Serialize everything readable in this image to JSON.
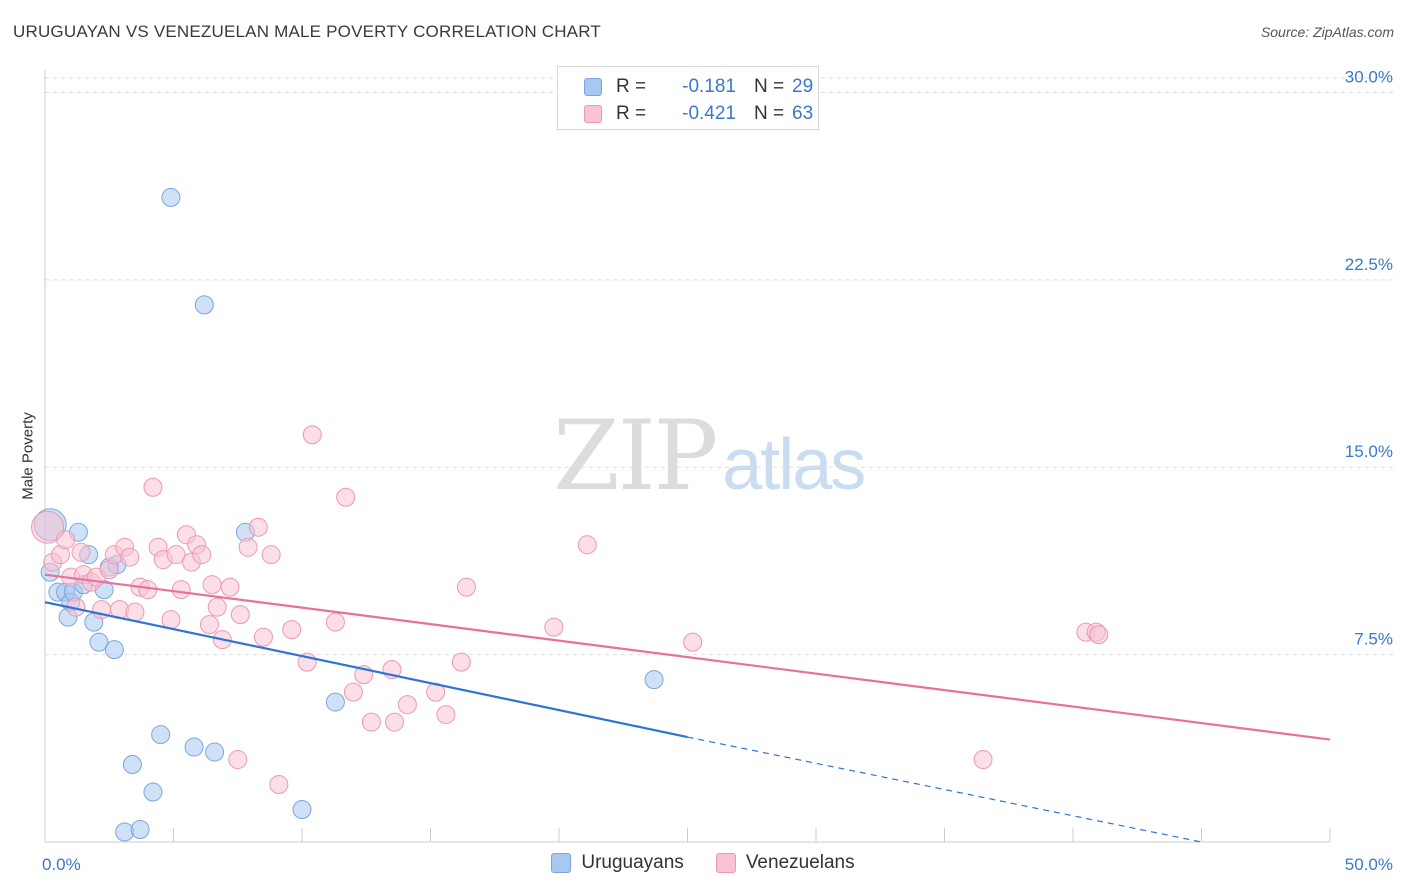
{
  "title": "URUGUAYAN VS VENEZUELAN MALE POVERTY CORRELATION CHART",
  "source": "Source: ZipAtlas.com",
  "watermark": {
    "zip": "ZIP",
    "atlas": "atlas"
  },
  "legend": {
    "rows": [
      {
        "r_label": "R =",
        "r_value": "-0.181",
        "n_label": "N =",
        "n_value": "29",
        "color": "#a8c8f0",
        "border": "#7aa6dd"
      },
      {
        "r_label": "R =",
        "r_value": "-0.421",
        "n_label": "N =",
        "n_value": "63",
        "color": "#f8c3d3",
        "border": "#ec98b3"
      }
    ]
  },
  "bottom_legend": [
    "Uruguayans",
    "Venezuelans"
  ],
  "chart_data": {
    "type": "scatter",
    "title": "URUGUAYAN VS VENEZUELAN MALE POVERTY CORRELATION CHART",
    "xlabel": "",
    "ylabel": "Male Poverty",
    "xlim": [
      0,
      50
    ],
    "ylim": [
      0,
      30.9
    ],
    "x_tick_labels": [
      "0.0%",
      "50.0%"
    ],
    "y_ticks": [
      7.5,
      15.0,
      22.5,
      30.0
    ],
    "y_tick_labels": [
      "7.5%",
      "15.0%",
      "22.5%",
      "30.0%"
    ],
    "grid": true,
    "legend_position": "top-center",
    "series": [
      {
        "name": "Uruguayans",
        "color": "#a8c8f0",
        "stroke": "#7aa6dd",
        "trend_color": "#2e74d6",
        "trend": {
          "x0": 0.0,
          "y0": 9.6,
          "x1": 25.0,
          "y1": 4.2,
          "dash_to_x": 45.0,
          "dash_to_y": 0.0
        },
        "points": [
          [
            0.2,
            12.7
          ],
          [
            0.2,
            10.8
          ],
          [
            0.5,
            10.0
          ],
          [
            0.8,
            10.0
          ],
          [
            0.9,
            9.0
          ],
          [
            1.0,
            9.6
          ],
          [
            1.1,
            10.0
          ],
          [
            1.3,
            12.4
          ],
          [
            1.5,
            10.3
          ],
          [
            1.7,
            11.5
          ],
          [
            1.9,
            8.8
          ],
          [
            2.1,
            8.0
          ],
          [
            2.3,
            10.1
          ],
          [
            2.5,
            11.0
          ],
          [
            2.7,
            7.7
          ],
          [
            2.8,
            11.1
          ],
          [
            3.1,
            0.4
          ],
          [
            3.4,
            3.1
          ],
          [
            3.7,
            0.5
          ],
          [
            4.2,
            2.0
          ],
          [
            4.5,
            4.3
          ],
          [
            4.9,
            25.8
          ],
          [
            5.8,
            3.8
          ],
          [
            6.2,
            21.5
          ],
          [
            6.6,
            3.6
          ],
          [
            7.8,
            12.4
          ],
          [
            10.0,
            1.3
          ],
          [
            11.3,
            5.6
          ],
          [
            23.7,
            6.5
          ]
        ]
      },
      {
        "name": "Venezuelans",
        "color": "#f8c3d3",
        "stroke": "#ec98b3",
        "trend_color": "#e8709a",
        "trend": {
          "x0": 0.0,
          "y0": 10.7,
          "x1": 50.0,
          "y1": 4.1
        },
        "points": [
          [
            0.1,
            12.6
          ],
          [
            0.3,
            11.2
          ],
          [
            0.6,
            11.5
          ],
          [
            0.8,
            12.1
          ],
          [
            1.0,
            10.6
          ],
          [
            1.2,
            9.4
          ],
          [
            1.4,
            11.6
          ],
          [
            1.5,
            10.7
          ],
          [
            1.8,
            10.4
          ],
          [
            2.0,
            10.6
          ],
          [
            2.2,
            9.3
          ],
          [
            2.5,
            10.9
          ],
          [
            2.7,
            11.5
          ],
          [
            2.9,
            9.3
          ],
          [
            3.1,
            11.8
          ],
          [
            3.3,
            11.4
          ],
          [
            3.5,
            9.2
          ],
          [
            3.7,
            10.2
          ],
          [
            4.0,
            10.1
          ],
          [
            4.2,
            14.2
          ],
          [
            4.4,
            11.8
          ],
          [
            4.6,
            11.3
          ],
          [
            4.9,
            8.9
          ],
          [
            5.1,
            11.5
          ],
          [
            5.3,
            10.1
          ],
          [
            5.5,
            12.3
          ],
          [
            5.7,
            11.2
          ],
          [
            5.9,
            11.9
          ],
          [
            6.1,
            11.5
          ],
          [
            6.4,
            8.7
          ],
          [
            6.5,
            10.3
          ],
          [
            6.7,
            9.4
          ],
          [
            6.9,
            8.1
          ],
          [
            7.2,
            10.2
          ],
          [
            7.5,
            3.3
          ],
          [
            7.6,
            9.1
          ],
          [
            7.9,
            11.8
          ],
          [
            8.3,
            12.6
          ],
          [
            8.5,
            8.2
          ],
          [
            8.8,
            11.5
          ],
          [
            9.1,
            2.3
          ],
          [
            9.6,
            8.5
          ],
          [
            10.2,
            7.2
          ],
          [
            10.4,
            16.3
          ],
          [
            11.3,
            8.8
          ],
          [
            11.7,
            13.8
          ],
          [
            12.0,
            6.0
          ],
          [
            12.4,
            6.7
          ],
          [
            12.7,
            4.8
          ],
          [
            13.5,
            6.9
          ],
          [
            13.6,
            4.8
          ],
          [
            14.1,
            5.5
          ],
          [
            15.2,
            6.0
          ],
          [
            15.6,
            5.1
          ],
          [
            16.2,
            7.2
          ],
          [
            16.4,
            10.2
          ],
          [
            19.8,
            8.6
          ],
          [
            21.1,
            11.9
          ],
          [
            25.2,
            8.0
          ],
          [
            40.5,
            8.4
          ],
          [
            40.9,
            8.4
          ],
          [
            41.0,
            8.3
          ],
          [
            36.5,
            3.3
          ]
        ]
      }
    ]
  }
}
